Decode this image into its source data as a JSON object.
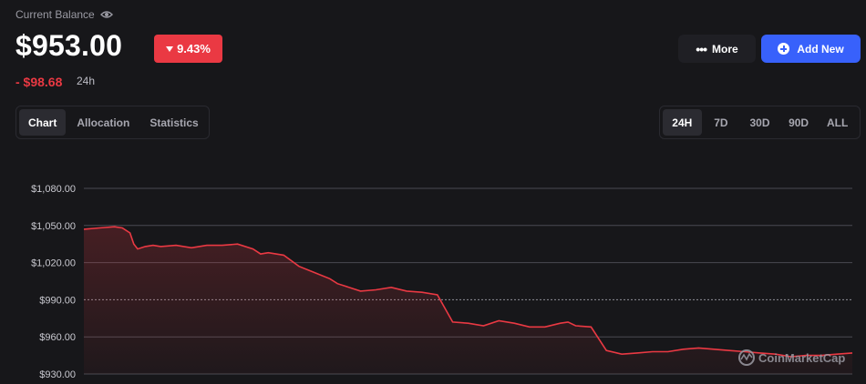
{
  "header": {
    "balance_label": "Current Balance",
    "balance_value": "$953.00",
    "change_percent": "9.43%",
    "change_amount": "- $98.68",
    "change_period": "24h"
  },
  "actions": {
    "more_label": "More",
    "add_new_label": "Add New"
  },
  "view_tabs": [
    {
      "label": "Chart",
      "active": true
    },
    {
      "label": "Allocation",
      "active": false
    },
    {
      "label": "Statistics",
      "active": false
    }
  ],
  "range_tabs": [
    {
      "label": "24H",
      "active": true
    },
    {
      "label": "7D",
      "active": false
    },
    {
      "label": "30D",
      "active": false
    },
    {
      "label": "90D",
      "active": false
    },
    {
      "label": "ALL",
      "active": false
    }
  ],
  "colors": {
    "negative": "#ea3943",
    "accent": "#3861fb",
    "background": "#17171a"
  },
  "watermark": "CoinMarketCap",
  "chart_data": {
    "type": "area",
    "x_range": [
      0,
      100
    ],
    "ylim": [
      930,
      1080
    ],
    "ytick_values": [
      930,
      960,
      990,
      1020,
      1050,
      1080
    ],
    "ytick_labels": [
      "$930.00",
      "$960.00",
      "$990.00",
      "$1,020.00",
      "$1,050.00",
      "$1,080.00"
    ],
    "reference_line": 990,
    "grid": true,
    "series": [
      {
        "x": [
          0,
          2,
          4,
          5,
          6,
          6.5,
          7,
          8,
          9,
          10,
          12,
          14,
          16,
          18,
          20,
          22,
          23,
          24,
          25,
          26,
          28,
          30,
          32,
          33,
          34,
          36,
          38,
          40,
          42,
          44,
          46,
          48,
          50,
          52,
          54,
          56,
          58,
          60,
          62,
          63,
          64,
          66,
          68,
          70,
          72,
          74,
          76,
          78,
          80,
          82,
          84,
          86,
          88,
          90,
          92,
          94,
          96,
          98,
          100
        ],
        "y": [
          1047,
          1048,
          1049,
          1048,
          1044,
          1035,
          1031,
          1033,
          1034,
          1033,
          1034,
          1032,
          1034,
          1034,
          1035,
          1031,
          1027,
          1028,
          1027,
          1026,
          1017,
          1012,
          1007,
          1003,
          1001,
          997,
          998,
          1000,
          997,
          996,
          994,
          972,
          971,
          969,
          973,
          971,
          968,
          968,
          971,
          972,
          969,
          968,
          949,
          946,
          947,
          948,
          948,
          950,
          951,
          950,
          949,
          948,
          947,
          946,
          944,
          945,
          945,
          946,
          947
        ]
      }
    ]
  }
}
